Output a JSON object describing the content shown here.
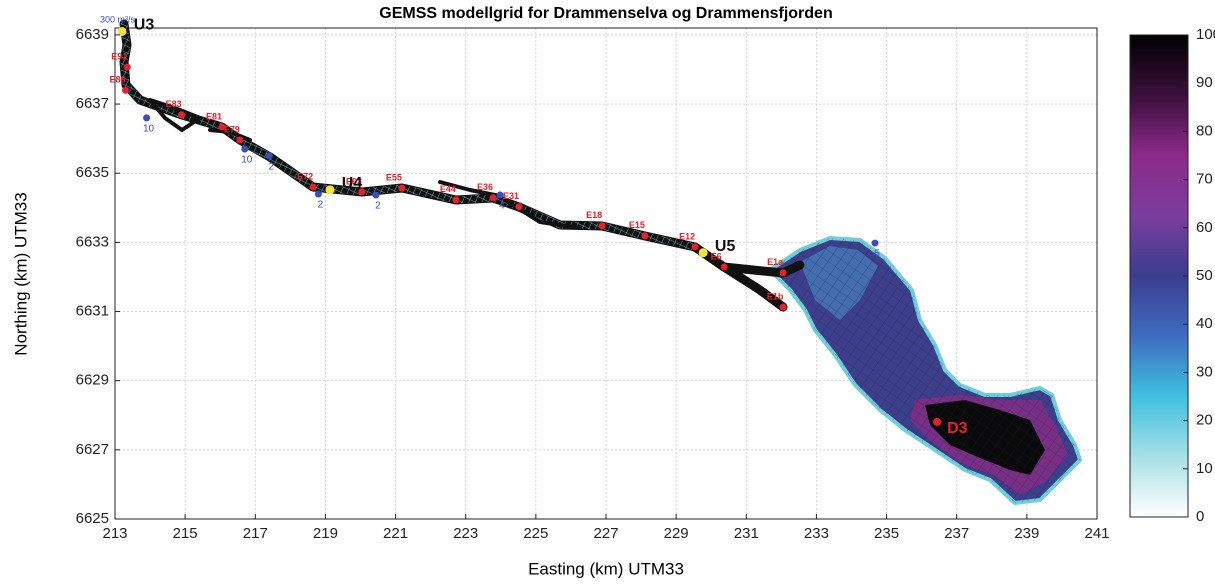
{
  "chart_data": {
    "type": "map",
    "title": "GEMSS modellgrid for Drammenselva og Drammensfjorden",
    "xlabel": "Easting (km) UTM33",
    "ylabel": "Northing (km) UTM33",
    "annotation": "300 m³/s",
    "xlim": [
      213,
      241
    ],
    "ylim": [
      6625,
      6639.2
    ],
    "xticks": [
      213,
      215,
      217,
      219,
      221,
      223,
      225,
      227,
      229,
      231,
      233,
      235,
      237,
      239,
      241
    ],
    "yticks": [
      6625,
      6627,
      6629,
      6631,
      6633,
      6635,
      6637,
      6639
    ],
    "grid": true,
    "colorbar": {
      "lim": [
        0,
        100
      ],
      "ticks": [
        0,
        10,
        20,
        30,
        40,
        50,
        60,
        70,
        80,
        90,
        100
      ],
      "colormap": [
        "#ffffff",
        "#a6e0e6",
        "#3fc0e0",
        "#3f6cc0",
        "#3b3d8f",
        "#7a3e9c",
        "#8c2a8a",
        "#3a0f3a",
        "#000000"
      ]
    },
    "stations": {
      "color": "#f2e43a",
      "points": [
        {
          "label": "U3",
          "x": 213.2,
          "y": 6639.1
        },
        {
          "label": "U4",
          "x": 219.13,
          "y": 6634.52
        },
        {
          "label": "U5",
          "x": 229.77,
          "y": 6632.7
        }
      ]
    },
    "sample_points": {
      "color": "#e8202a",
      "points": [
        {
          "label": "E91",
          "x": 213.35,
          "y": 6638.07
        },
        {
          "label": "E86",
          "x": 213.3,
          "y": 6637.4
        },
        {
          "label": "E83",
          "x": 214.9,
          "y": 6636.69
        },
        {
          "label": "E81",
          "x": 216.05,
          "y": 6636.34
        },
        {
          "label": "E79",
          "x": 216.56,
          "y": 6635.96
        },
        {
          "label": "E72",
          "x": 218.65,
          "y": 6634.6
        },
        {
          "label": "E63",
          "x": 220.04,
          "y": 6634.46
        },
        {
          "label": "E55",
          "x": 221.18,
          "y": 6634.57
        },
        {
          "label": "E44",
          "x": 222.72,
          "y": 6634.23
        },
        {
          "label": "E36",
          "x": 223.78,
          "y": 6634.29
        },
        {
          "label": "E31",
          "x": 224.52,
          "y": 6634.03
        },
        {
          "label": "E18",
          "x": 226.89,
          "y": 6633.48
        },
        {
          "label": "E15",
          "x": 228.11,
          "y": 6633.19
        },
        {
          "label": "E12",
          "x": 229.54,
          "y": 6632.87
        },
        {
          "label": "E6",
          "x": 230.37,
          "y": 6632.29
        },
        {
          "label": "E1a",
          "x": 232.05,
          "y": 6632.12
        },
        {
          "label": "E1b",
          "x": 232.05,
          "y": 6631.13
        }
      ]
    },
    "flow_points": {
      "color": "#3b4cc0",
      "points": [
        {
          "label": "10",
          "x": 213.9,
          "y": 6636.6
        },
        {
          "label": "10",
          "x": 216.7,
          "y": 6635.7
        },
        {
          "label": "2",
          "x": 217.4,
          "y": 6635.5
        },
        {
          "label": "2",
          "x": 218.8,
          "y": 6634.4
        },
        {
          "label": "2",
          "x": 220.44,
          "y": 6634.37
        },
        {
          "label": "4",
          "x": 223.98,
          "y": 6634.37
        },
        {
          "label": "5",
          "x": 234.67,
          "y": 6632.98
        }
      ]
    },
    "highlight": {
      "color": "#e8202a",
      "label": "D3",
      "x": 236.44,
      "y": 6627.81
    }
  }
}
